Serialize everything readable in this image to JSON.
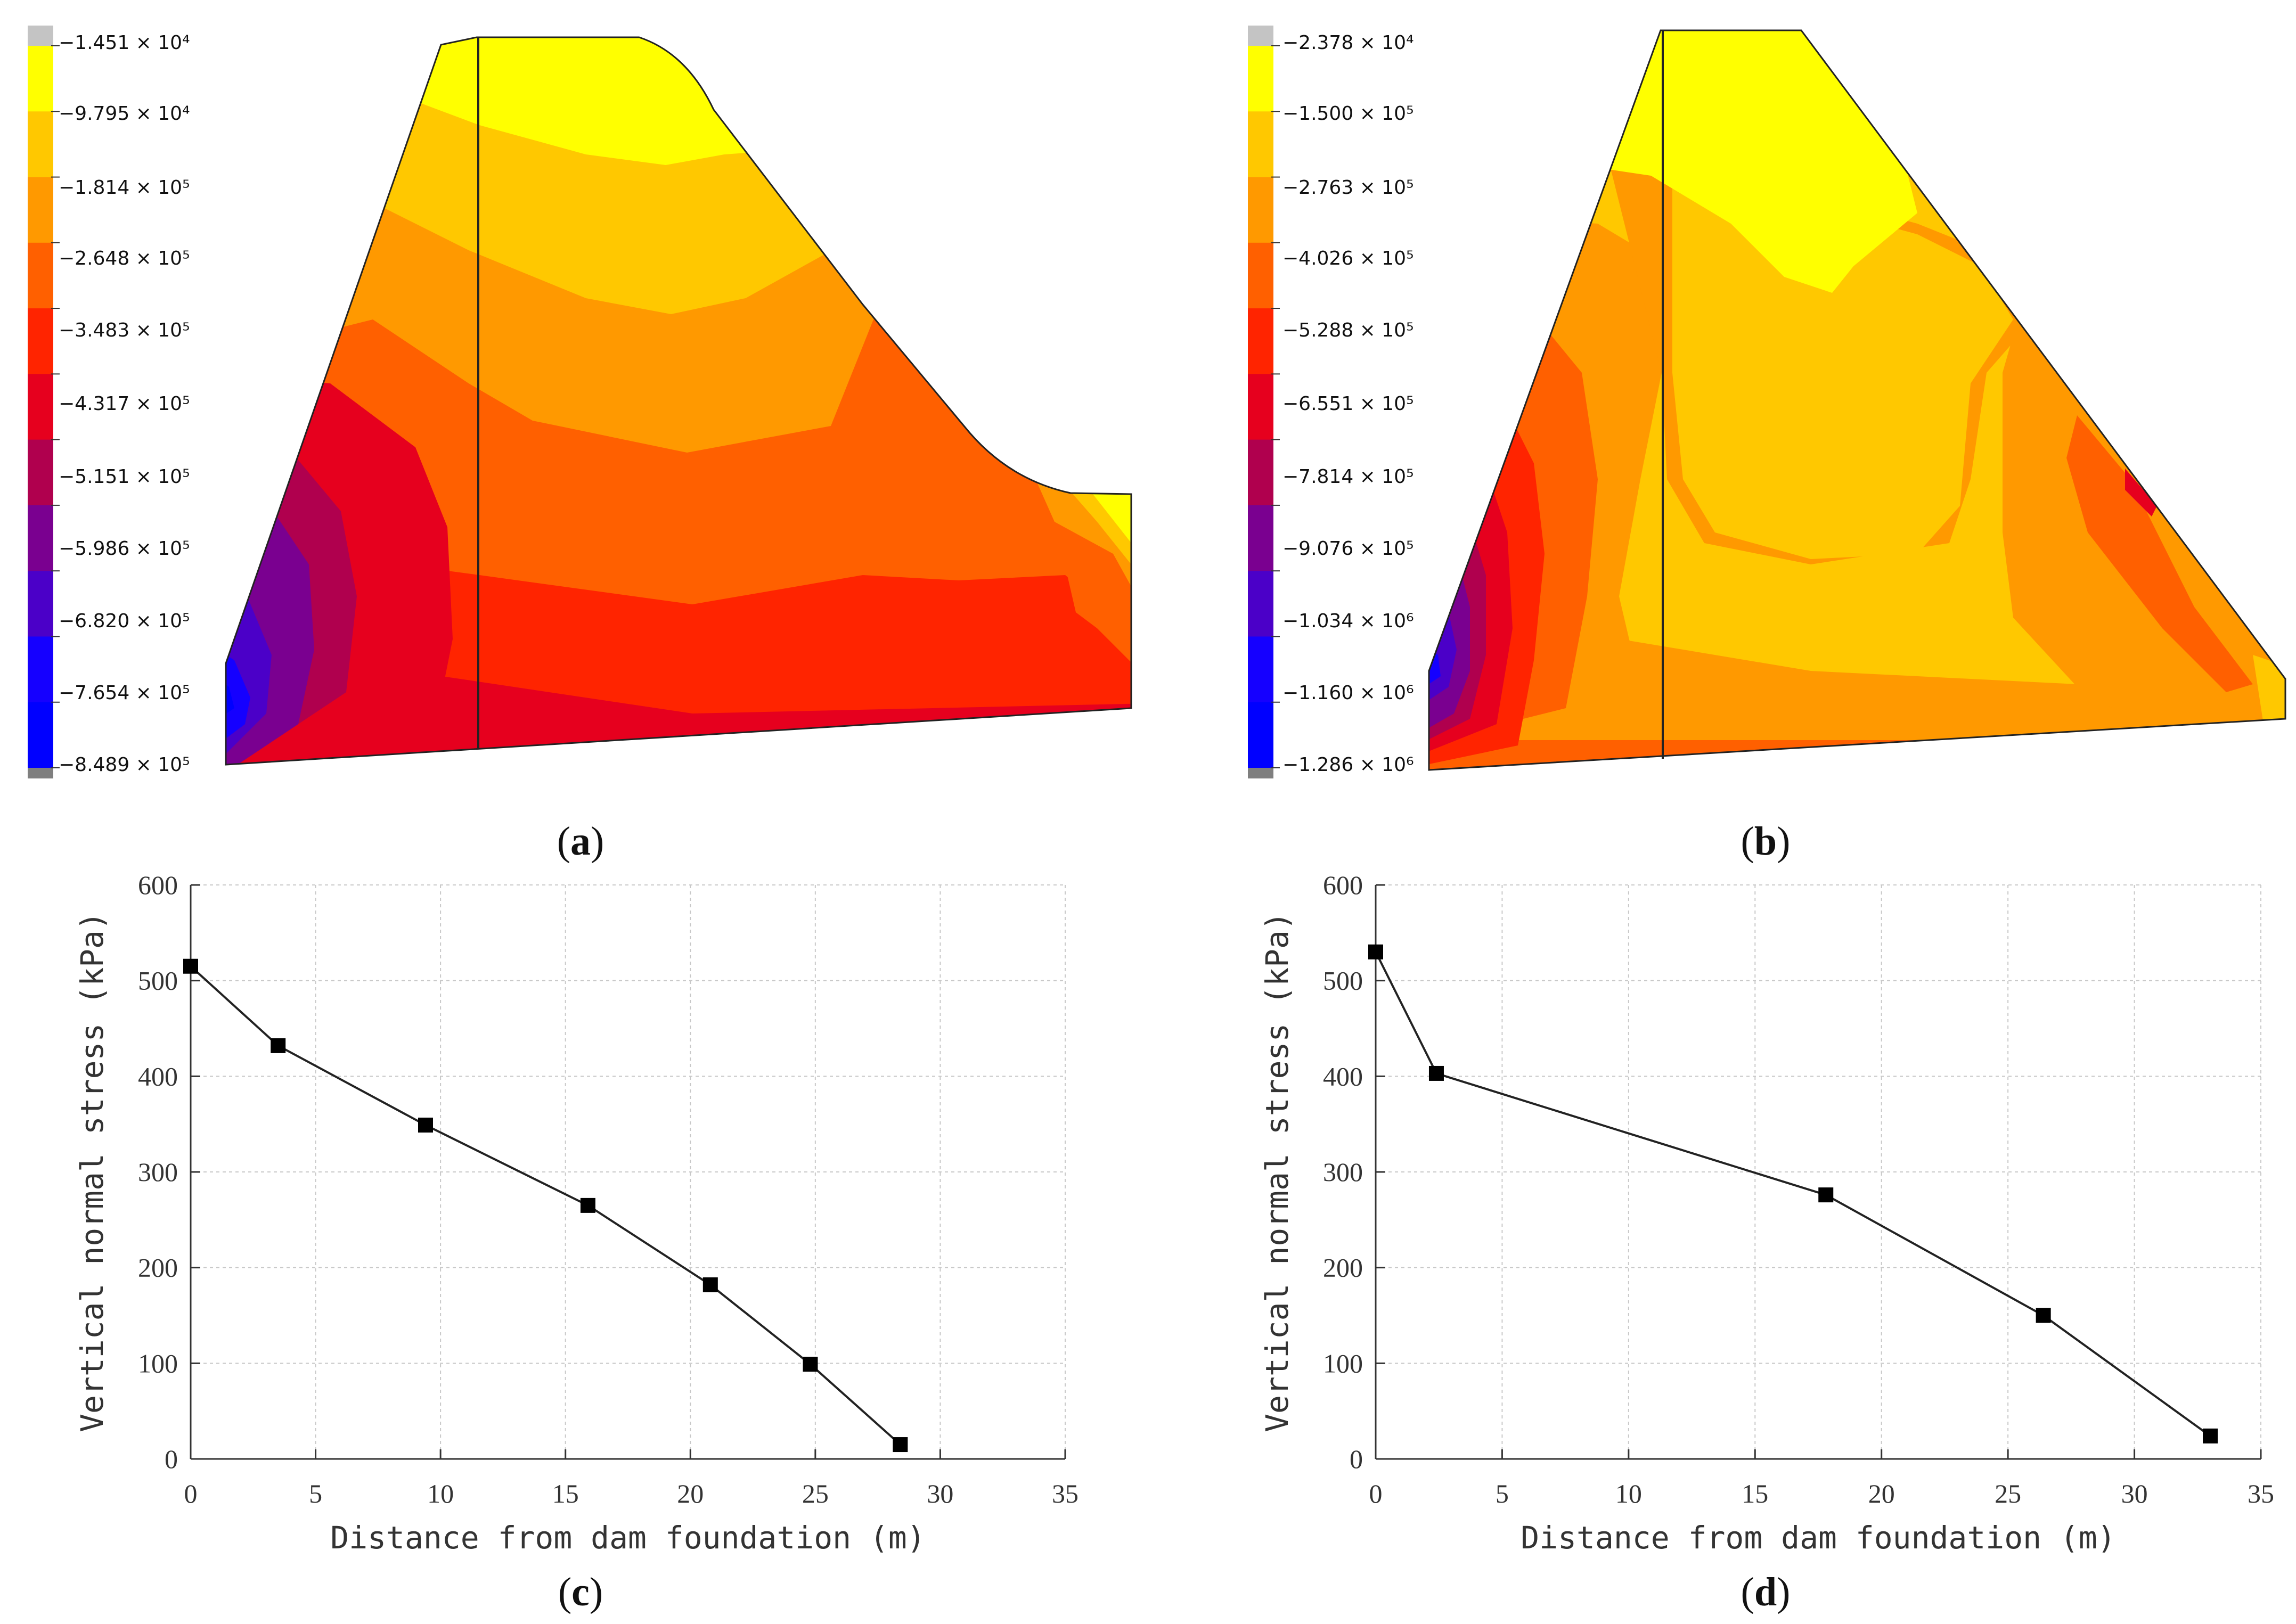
{
  "panels": [
    {
      "id": "a",
      "caption": "a",
      "type": "contour",
      "legend": [
        "−1.451 × 10⁴",
        "−9.795 × 10⁴",
        "−1.814 × 10⁵",
        "−2.648 × 10⁵",
        "−3.483 × 10⁵",
        "−4.317 × 10⁵",
        "−5.151 × 10⁵",
        "−5.986 × 10⁵",
        "−6.820 × 10⁵",
        "−7.654 × 10⁵",
        "−8.489 × 10⁵"
      ]
    },
    {
      "id": "b",
      "caption": "b",
      "type": "contour",
      "legend": [
        "−2.378 × 10⁴",
        "−1.500 × 10⁵",
        "−2.763 × 10⁵",
        "−4.026 × 10⁵",
        "−5.288 × 10⁵",
        "−6.551 × 10⁵",
        "−7.814 × 10⁵",
        "−9.076 × 10⁵",
        "−1.034 × 10⁶",
        "−1.160 × 10⁶",
        "−1.286 × 10⁶"
      ]
    }
  ],
  "legend_colors": [
    "#ffff00",
    "#ffc800",
    "#ff9900",
    "#ff6000",
    "#ff2400",
    "#e6001e",
    "#b0004e",
    "#7a0090",
    "#4b00c8",
    "#1500ff",
    "#0000ff"
  ],
  "legend_end_colors": {
    "top": "#c4c4c4",
    "bottom": "#7f7f7f"
  },
  "chart_data": [
    {
      "id": "c",
      "caption": "c",
      "type": "line",
      "xlabel": "Distance from dam foundation (m)",
      "ylabel": "Vertical normal stress (kPa)",
      "xlim": [
        0,
        35
      ],
      "ylim": [
        0,
        600
      ],
      "xticks": [
        "0",
        "5",
        "10",
        "15",
        "20",
        "25",
        "30",
        "35"
      ],
      "yticks": [
        "0",
        "100",
        "200",
        "300",
        "400",
        "500",
        "600"
      ],
      "grid": true,
      "marker": "square",
      "x": [
        0,
        3.5,
        9.4,
        15.9,
        20.8,
        24.8,
        28.4
      ],
      "y": [
        515,
        432,
        349,
        265,
        182,
        99,
        15
      ]
    },
    {
      "id": "d",
      "caption": "d",
      "type": "line",
      "xlabel": "Distance from dam foundation (m)",
      "ylabel": "Vertical normal stress (kPa)",
      "xlim": [
        0,
        35
      ],
      "ylim": [
        0,
        600
      ],
      "xticks": [
        "0",
        "5",
        "10",
        "15",
        "20",
        "25",
        "30",
        "35"
      ],
      "yticks": [
        "0",
        "100",
        "200",
        "300",
        "400",
        "500",
        "600"
      ],
      "grid": true,
      "marker": "square",
      "x": [
        0,
        2.4,
        17.8,
        26.4,
        33.0
      ],
      "y": [
        530,
        403,
        276,
        150,
        24
      ]
    }
  ]
}
